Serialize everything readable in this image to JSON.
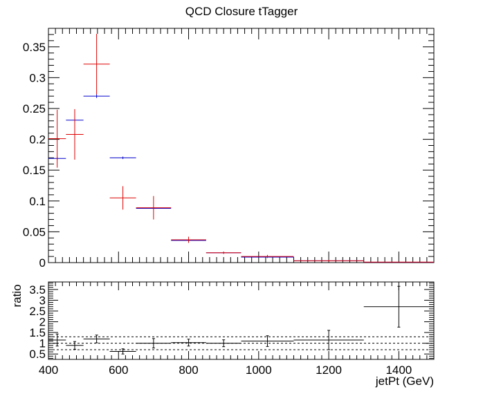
{
  "chart_data": [
    {
      "type": "scatter",
      "title": "QCD Closure tTagger",
      "xlabel": "",
      "ylabel": "",
      "xlim": [
        400,
        1500
      ],
      "ylim": [
        0,
        0.38
      ],
      "xticks": [
        400,
        600,
        800,
        1000,
        1200,
        1400
      ],
      "yticks": [
        0,
        0.05,
        0.1,
        0.15,
        0.2,
        0.25,
        0.3,
        0.35
      ],
      "ytick_labels": [
        "0",
        "0.05",
        "0.1",
        "0.15",
        "0.2",
        "0.25",
        "0.3",
        "0.35"
      ],
      "grid": false,
      "bins": [
        [
          400,
          450
        ],
        [
          450,
          500
        ],
        [
          500,
          575
        ],
        [
          575,
          650
        ],
        [
          650,
          750
        ],
        [
          750,
          850
        ],
        [
          850,
          950
        ],
        [
          950,
          1100
        ],
        [
          1100,
          1300
        ],
        [
          1300,
          1500
        ]
      ],
      "series": [
        {
          "color": "#0000cc",
          "values": [
            0.169,
            0.231,
            0.27,
            0.17,
            0.088,
            0.036,
            0.016,
            0.009,
            0.003,
            0.0006
          ],
          "errors": [
            0.002,
            0.002,
            0.003,
            0.002,
            0.001,
            0.001,
            0.0005,
            0.0004,
            0.0002,
            0.0001
          ]
        },
        {
          "color": "#dd0000",
          "values": [
            0.201,
            0.208,
            0.322,
            0.105,
            0.089,
            0.037,
            0.016,
            0.01,
            0.003,
            0.0008
          ],
          "errors": [
            0.047,
            0.041,
            0.049,
            0.019,
            0.019,
            0.005,
            0.002,
            0.0025,
            0.0012,
            0.0003
          ]
        }
      ]
    },
    {
      "type": "scatter",
      "title": "",
      "xlabel": "jetPt (GeV)",
      "ylabel": "ratio",
      "xlim": [
        400,
        1500
      ],
      "ylim": [
        0.25,
        3.85
      ],
      "xticks": [
        400,
        600,
        800,
        1000,
        1200,
        1400
      ],
      "yticks": [
        0.5,
        1,
        1.5,
        2,
        2.5,
        3,
        3.5
      ],
      "ytick_labels": [
        "0.5",
        "1",
        "1.5",
        "2",
        "2.5",
        "3",
        "3.5"
      ],
      "reference_lines": [
        0.7,
        1.0,
        1.3
      ],
      "grid": false,
      "bins": [
        [
          400,
          450
        ],
        [
          450,
          500
        ],
        [
          500,
          575
        ],
        [
          575,
          650
        ],
        [
          650,
          750
        ],
        [
          750,
          850
        ],
        [
          850,
          950
        ],
        [
          950,
          1100
        ],
        [
          1100,
          1300
        ],
        [
          1300,
          1500
        ]
      ],
      "series": [
        {
          "color": "#000000",
          "values": [
            1.15,
            0.9,
            1.2,
            0.62,
            1.0,
            1.03,
            1.0,
            1.1,
            1.15,
            2.7
          ],
          "errors": [
            0.28,
            0.18,
            0.18,
            0.12,
            0.22,
            0.16,
            0.16,
            0.25,
            0.45,
            0.95
          ]
        }
      ]
    }
  ]
}
